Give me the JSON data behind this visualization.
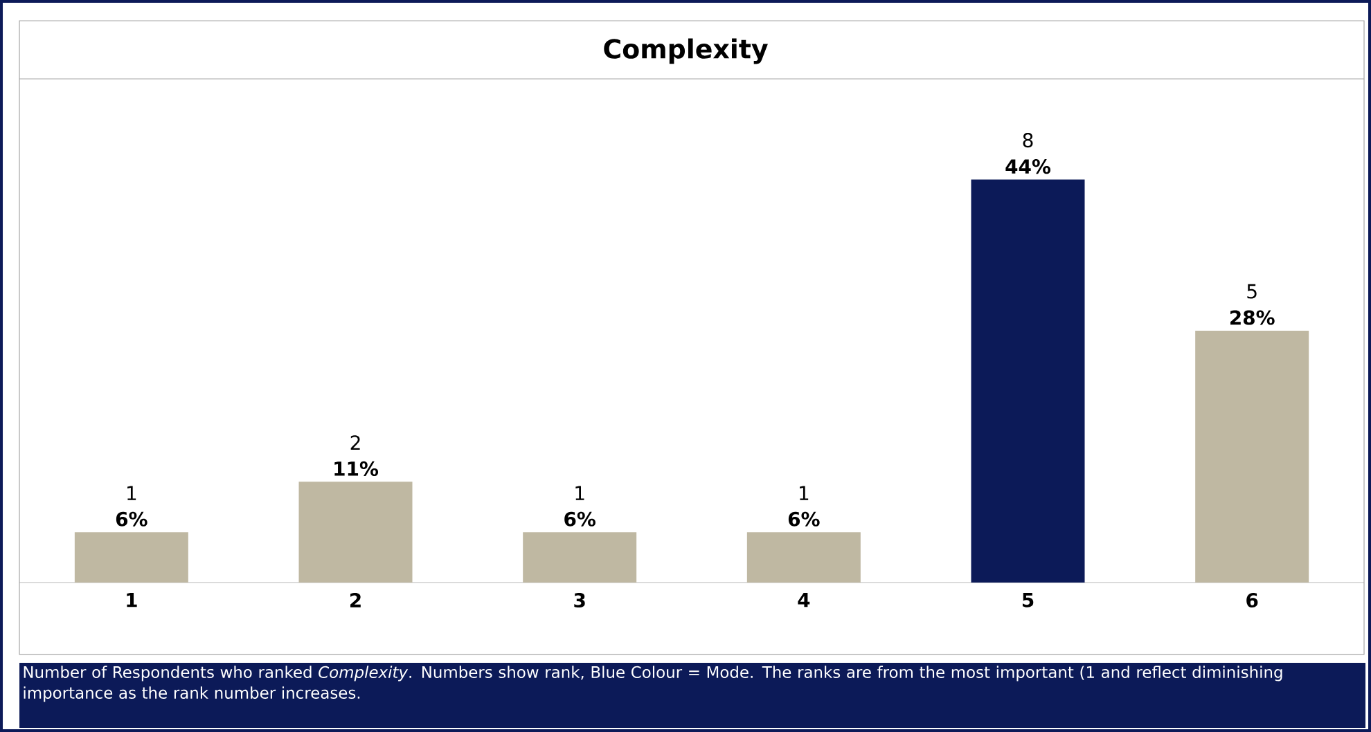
{
  "chart_data": {
    "type": "bar",
    "title": "Complexity",
    "categories": [
      "1",
      "2",
      "3",
      "4",
      "5",
      "6"
    ],
    "values": [
      1,
      2,
      1,
      1,
      8,
      5
    ],
    "colors": [
      "#bfb8a2",
      "#bfb8a2",
      "#bfb8a2",
      "#bfb8a2",
      "#0c1a58",
      "#bfb8a2"
    ],
    "data_labels": true,
    "annotations": [
      {
        "text": "6%",
        "x": "1",
        "y": 1
      },
      {
        "text": "11%",
        "x": "2",
        "y": 2
      },
      {
        "text": "6%",
        "x": "3",
        "y": 1
      },
      {
        "text": "6%",
        "x": "4",
        "y": 1
      },
      {
        "text": "44%",
        "x": "5",
        "y": 8
      },
      {
        "text": "28%",
        "x": "6",
        "y": 5
      },
      "Number of Respondents who ranked *Complexity*.  Numbers show rank, Blue Colour = Mode. The ranks are from the most important (1 and reflect diminishing importance as the rank number increases."
    ]
  }
}
